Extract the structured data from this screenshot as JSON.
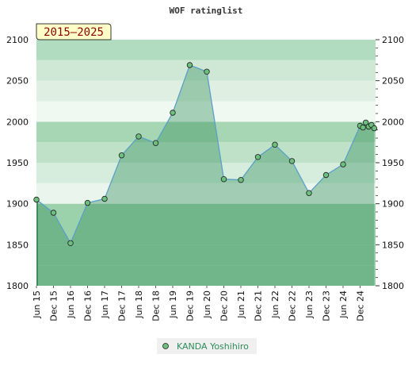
{
  "chart_data": {
    "type": "area",
    "title": "WOF ratinglist",
    "period_badge": "2015–2025",
    "ylim": [
      1800,
      2100
    ],
    "y_ticks": [
      1800,
      1850,
      1900,
      1950,
      2000,
      2050,
      2100
    ],
    "x_tick_labels": [
      "Jun 15",
      "Dec 15",
      "Jun 16",
      "Dec 16",
      "Jun 17",
      "Dec 17",
      "Jun 18",
      "Dec 18",
      "Jun 19",
      "Dec 19",
      "Jun 20",
      "Dec 20",
      "Jun 21",
      "Dec 21",
      "Jun 22",
      "Dec 22",
      "Jun 23",
      "Dec 23",
      "Jun 24",
      "Dec 24"
    ],
    "grid": true,
    "legend_position": "bottom-center",
    "series": [
      {
        "name": "KANDA Yoshihiro",
        "color": "#2e8b57",
        "line_color": "#5aa0c8",
        "marker_color": "#6cbf7c",
        "points": [
          {
            "x": "2015-06",
            "y": 1905
          },
          {
            "x": "2015-12",
            "y": 1889
          },
          {
            "x": "2016-06",
            "y": 1852
          },
          {
            "x": "2016-12",
            "y": 1901
          },
          {
            "x": "2017-06",
            "y": 1906
          },
          {
            "x": "2017-12",
            "y": 1959
          },
          {
            "x": "2018-06",
            "y": 1982
          },
          {
            "x": "2018-12",
            "y": 1974
          },
          {
            "x": "2019-06",
            "y": 2011
          },
          {
            "x": "2019-12",
            "y": 2069
          },
          {
            "x": "2020-06",
            "y": 2061
          },
          {
            "x": "2020-12",
            "y": 1930
          },
          {
            "x": "2021-06",
            "y": 1929
          },
          {
            "x": "2021-12",
            "y": 1957
          },
          {
            "x": "2022-06",
            "y": 1972
          },
          {
            "x": "2022-12",
            "y": 1952
          },
          {
            "x": "2023-06",
            "y": 1913
          },
          {
            "x": "2023-12",
            "y": 1935
          },
          {
            "x": "2024-06",
            "y": 1948
          },
          {
            "x": "2024-12",
            "y": 1995
          },
          {
            "x": "2025-01",
            "y": 1993
          },
          {
            "x": "2025-02",
            "y": 1999
          },
          {
            "x": "2025-03",
            "y": 1994
          },
          {
            "x": "2025-04",
            "y": 1996
          },
          {
            "x": "2025-05",
            "y": 1992
          }
        ]
      }
    ]
  }
}
